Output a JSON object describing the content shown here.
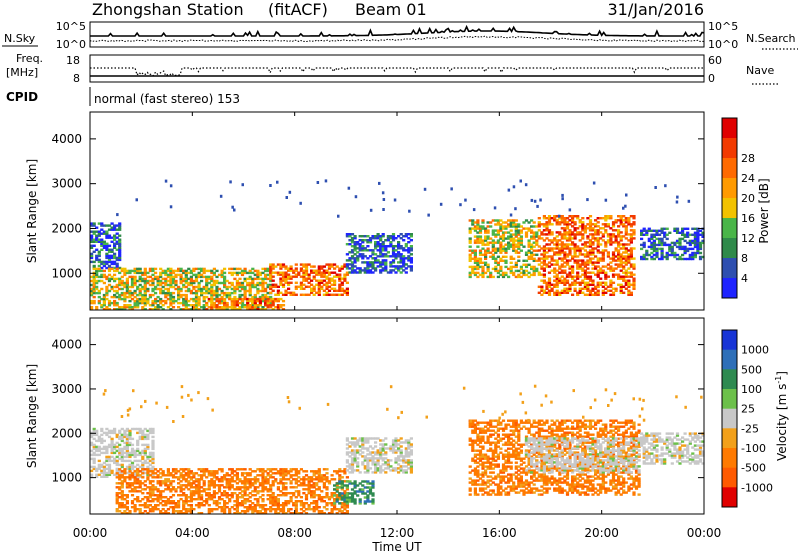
{
  "header": {
    "station": "Zhongshan Station",
    "mode": "(fitACF)",
    "beam": "Beam 01",
    "date": "31/Jan/2016"
  },
  "top_strip": {
    "left_label": "N.Sky",
    "left_ticks": [
      "10^5",
      "10^0"
    ],
    "right_ticks": [
      "10^5",
      "10^0"
    ],
    "right_label": "N.Search"
  },
  "freq_strip": {
    "label_line1": "Freq.",
    "label_line2": "[MHz]",
    "left_ticks": [
      "18",
      "8"
    ],
    "right_ticks": [
      "60",
      "0"
    ],
    "right_label": "Nave"
  },
  "cpid": {
    "label": "CPID",
    "text": "normal (fast stereo) 153"
  },
  "power_panel": {
    "ylabel": "Slant Range [km]",
    "yticks": [
      "1000",
      "2000",
      "3000",
      "4000"
    ],
    "colorbar_label": "Power [dB]",
    "colorbar_ticks": [
      "4",
      "8",
      "12",
      "16",
      "20",
      "24",
      "28"
    ],
    "colors": [
      "#1f24ff",
      "#2e4fb0",
      "#2f8a4a",
      "#49b548",
      "#f2c200",
      "#ff9a00",
      "#ff6a00",
      "#f23a00",
      "#e00000"
    ]
  },
  "velocity_panel": {
    "ylabel": "Slant Range [km]",
    "yticks": [
      "1000",
      "2000",
      "3000",
      "4000"
    ],
    "colorbar_label": "Velocity [m s^-1]",
    "colorbar_ticks": [
      "1000",
      "500",
      "100",
      "25",
      "-25",
      "-100",
      "-500",
      "-1000"
    ],
    "colors": [
      "#1734d6",
      "#2e6fb8",
      "#2e8a50",
      "#6cc04a",
      "#c8c8c8",
      "#f2a01a",
      "#ff7a00",
      "#ff5a00",
      "#e00000"
    ]
  },
  "xaxis": {
    "ticks": [
      "00:00",
      "04:00",
      "08:00",
      "12:00",
      "16:00",
      "20:00",
      "00:00"
    ],
    "label": "Time UT"
  },
  "chart_data": [
    {
      "type": "heatmap",
      "quantity": "Power [dB]",
      "xlim_hours": [
        0,
        24
      ],
      "ylim_km": [
        180,
        4600
      ],
      "color_scale": [
        0,
        32
      ],
      "echo_regions": [
        {
          "t_start": 0.0,
          "t_end": 1.2,
          "r_start": 1100,
          "r_end": 2100,
          "dominant": "low"
        },
        {
          "t_start": 0.0,
          "t_end": 7.0,
          "r_start": 180,
          "r_end": 1100,
          "dominant": "mid"
        },
        {
          "t_start": 4.5,
          "t_end": 7.5,
          "r_start": 180,
          "r_end": 450,
          "dominant": "high"
        },
        {
          "t_start": 7.0,
          "t_end": 10.0,
          "r_start": 500,
          "r_end": 1200,
          "dominant": "high"
        },
        {
          "t_start": 10.0,
          "t_end": 12.5,
          "r_start": 1000,
          "r_end": 1900,
          "dominant": "low"
        },
        {
          "t_start": 14.8,
          "t_end": 17.5,
          "r_start": 900,
          "r_end": 2200,
          "dominant": "mid"
        },
        {
          "t_start": 17.5,
          "t_end": 21.3,
          "r_start": 500,
          "r_end": 2300,
          "dominant": "high"
        },
        {
          "t_start": 21.5,
          "t_end": 24.0,
          "r_start": 1300,
          "r_end": 2000,
          "dominant": "low"
        }
      ]
    },
    {
      "type": "heatmap",
      "quantity": "Velocity [m s^-1]",
      "xlim_hours": [
        0,
        24
      ],
      "ylim_km": [
        180,
        4600
      ],
      "echo_regions": [
        {
          "t_start": 0.0,
          "t_end": 2.5,
          "r_start": 1000,
          "r_end": 2100,
          "dominant": "near-zero"
        },
        {
          "t_start": 1.0,
          "t_end": 10.0,
          "r_start": 180,
          "r_end": 1200,
          "dominant": "negative"
        },
        {
          "t_start": 9.5,
          "t_end": 11.0,
          "r_start": 400,
          "r_end": 900,
          "dominant": "positive"
        },
        {
          "t_start": 10.0,
          "t_end": 12.5,
          "r_start": 1100,
          "r_end": 1900,
          "dominant": "near-zero"
        },
        {
          "t_start": 14.8,
          "t_end": 21.5,
          "r_start": 600,
          "r_end": 2300,
          "dominant": "negative"
        },
        {
          "t_start": 17.0,
          "t_end": 21.5,
          "r_start": 1100,
          "r_end": 1900,
          "dominant": "near-zero"
        },
        {
          "t_start": 21.5,
          "t_end": 24.0,
          "r_start": 1300,
          "r_end": 2000,
          "dominant": "near-zero"
        }
      ]
    }
  ]
}
